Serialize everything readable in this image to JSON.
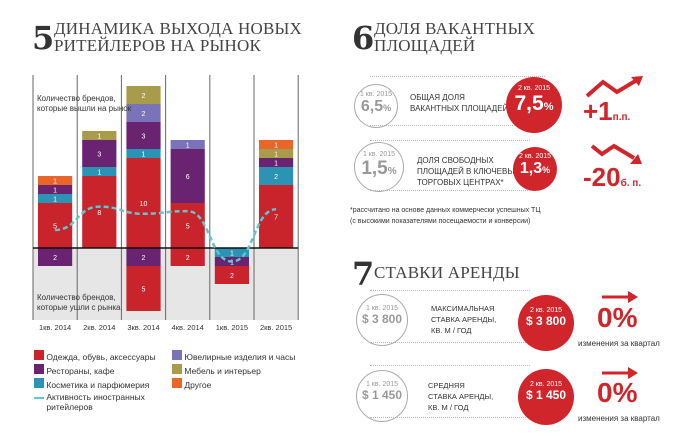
{
  "section5": {
    "number": "5",
    "title_line1": "ДИНАМИКА ВЫХОДА НОВЫХ",
    "title_line2": "РИТЕЙЛЕРОВ НА РЫНОК"
  },
  "section6": {
    "number": "6",
    "title_line1": "ДОЛЯ ВАКАНТНЫХ",
    "title_line2": "ПЛОЩАДЕЙ",
    "rows": [
      {
        "prev_label": "1 кв. 2015",
        "prev_value": "6,5",
        "prev_unit": "%",
        "desc_line1": "ОБЩАЯ ДОЛЯ",
        "desc_line2": "ВАКАНТНЫХ ПЛОЩАДЕЙ",
        "desc_line3": "",
        "cur_label": "2 кв. 2015",
        "cur_value": "7,5",
        "cur_unit": "%",
        "change": "+1",
        "change_unit": "п.п.",
        "trend": "up"
      },
      {
        "prev_label": "1 кв. 2015",
        "prev_value": "1,5",
        "prev_unit": "%",
        "desc_line1": "ДОЛЯ СВОБОДНЫХ",
        "desc_line2": "ПЛОЩАДЕЙ В КЛЮЧЕВЫХ",
        "desc_line3": "ТОРГОВЫХ ЦЕНТРАХ*",
        "cur_label": "2 кв. 2015",
        "cur_value": "1,3",
        "cur_unit": "%",
        "change": "-20",
        "change_unit": "б. п.",
        "trend": "down"
      }
    ],
    "footnote_line1": "*рассчитано на основе данных коммерчески успешных ТЦ",
    "footnote_line2": "(с высокими показателями посещаемости и конверсии)"
  },
  "section7": {
    "number": "7",
    "title": "СТАВКИ АРЕНДЫ",
    "rows": [
      {
        "prev_label": "1 кв. 2015",
        "prev_value": "$ 3 800",
        "desc_line1": "МАКСИМАЛЬНАЯ",
        "desc_line2": "СТАВКА АРЕНДЫ,",
        "desc_line3": "КВ. М / ГОД",
        "cur_label": "2 кв. 2015",
        "cur_value": "$ 3 800",
        "change": "0%",
        "change_caption": "изменения за квартал",
        "trend": "flat"
      },
      {
        "prev_label": "1 кв. 2015",
        "prev_value": "$ 1 450",
        "desc_line1": "СРЕДНЯЯ",
        "desc_line2": "СТАВКА АРЕНДЫ,",
        "desc_line3": "КВ. М / ГОД",
        "cur_label": "2 кв. 2015",
        "cur_value": "$ 1 450",
        "change": "0%",
        "change_caption": "изменения за квартал",
        "trend": "flat"
      }
    ]
  },
  "chart_data": {
    "type": "bar",
    "stacked": true,
    "categories": [
      "1кв. 2014",
      "2кв. 2014",
      "3кв. 2014",
      "4кв. 2014",
      "1кв. 2015",
      "2кв. 2015"
    ],
    "upper_label_line1": "Количество брендов,",
    "upper_label_line2": "которые вышли на рынок",
    "lower_label_line1": "Количество брендов,",
    "lower_label_line2": "которые ушли с рынка",
    "series": [
      {
        "name": "Одежда, обувь, аксессуары",
        "color": "#c9232b",
        "entered": [
          5,
          8,
          10,
          5,
          0,
          7
        ],
        "exited": [
          0,
          0,
          5,
          2,
          2,
          0
        ]
      },
      {
        "name": "Косметика и парфюмерия",
        "color": "#2b93b4",
        "entered": [
          1,
          1,
          1,
          0,
          0,
          2
        ],
        "exited": [
          0,
          0,
          0,
          0,
          1,
          0
        ]
      },
      {
        "name": "Рестораны, кафе",
        "color": "#6a2371",
        "entered": [
          1,
          3,
          3,
          6,
          0,
          1
        ],
        "exited": [
          2,
          0,
          2,
          0,
          1,
          0
        ]
      },
      {
        "name": "Ювелирные изделия и часы",
        "color": "#7a73b9",
        "entered": [
          0,
          0,
          2,
          1,
          0,
          0
        ],
        "exited": [
          0,
          0,
          0,
          0,
          0,
          0
        ]
      },
      {
        "name": "Мебель и интерьер",
        "color": "#a89b4c",
        "entered": [
          0,
          1,
          2,
          0,
          0,
          1
        ],
        "exited": [
          0,
          0,
          0,
          0,
          0,
          0
        ]
      },
      {
        "name": "Другое",
        "color": "#e9662b",
        "entered": [
          1,
          0,
          0,
          0,
          0,
          1
        ],
        "exited": [
          0,
          0,
          0,
          0,
          0,
          0
        ]
      }
    ],
    "line": {
      "name": "Активность иностранных ритейлеров",
      "color": "#5ec6cf",
      "values": [
        2,
        4.6,
        3.8,
        4.1,
        -1.5,
        4.3
      ]
    },
    "legend_order": [
      0,
      2,
      1,
      3,
      4,
      5
    ],
    "legend_placement": "bottom"
  },
  "colors": {
    "accent": "#d0262b"
  }
}
